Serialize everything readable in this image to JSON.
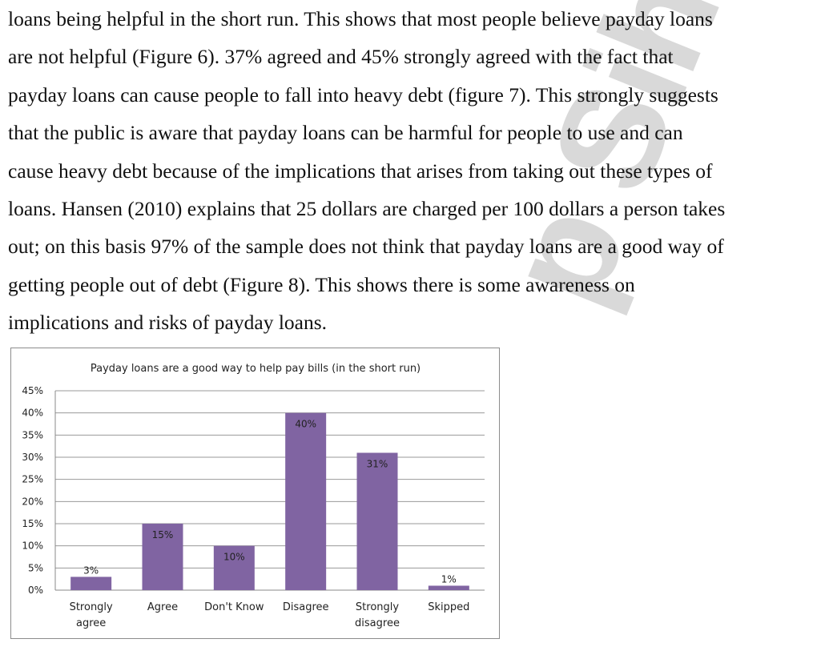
{
  "watermark": "p Sihra",
  "paragraph_lines": [
    "loans being helpful in the short run. This shows that most people believe payday loans",
    "are not helpful (Figure 6). 37% agreed and 45% strongly agreed with the fact that",
    "payday loans can cause people to fall into heavy debt (figure 7). This strongly suggests",
    "that the public is aware that payday loans can be harmful for people to use and can",
    "cause heavy debt because of the implications that arises from taking out these types of",
    "loans. Hansen (2010) explains that 25 dollars are charged per 100 dollars a person takes",
    "out; on this basis 97% of the sample does not think that payday loans are a good way of",
    "getting people out of debt (Figure 8).  This shows there is some awareness on",
    "implications and risks of payday loans."
  ],
  "chart_data": {
    "type": "bar",
    "title": "Payday loans are a good way to help pay bills (in the short run)",
    "categories": [
      [
        "Strongly",
        "agree"
      ],
      [
        "Agree"
      ],
      [
        "Don't Know"
      ],
      [
        "Disagree"
      ],
      [
        "Strongly",
        "disagree"
      ],
      [
        "Skipped"
      ]
    ],
    "values": [
      3,
      15,
      10,
      40,
      31,
      1
    ],
    "value_labels": [
      "3%",
      "15%",
      "10%",
      "40%",
      "31%",
      "1%"
    ],
    "yticks": [
      "0%",
      "5%",
      "10%",
      "15%",
      "20%",
      "25%",
      "30%",
      "35%",
      "40%",
      "45%"
    ],
    "ylim": [
      0,
      45
    ],
    "grid": true,
    "bar_color": "#8064a2"
  }
}
